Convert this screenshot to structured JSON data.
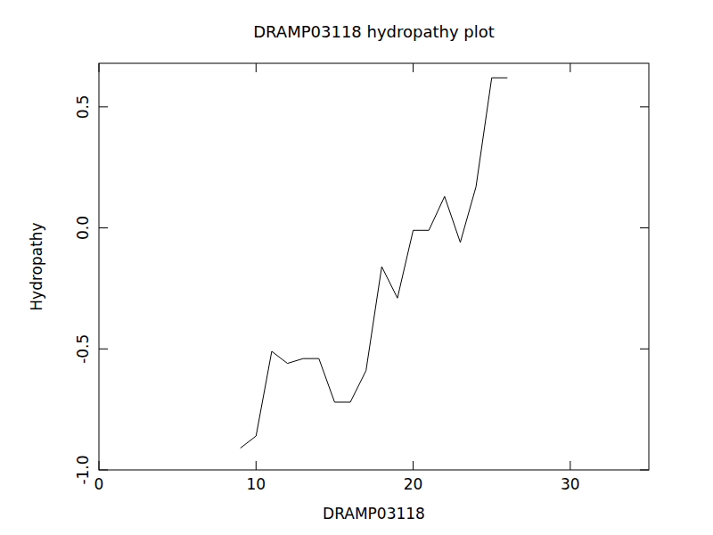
{
  "chart_data": {
    "type": "line",
    "title": "DRAMP03118 hydropathy plot",
    "x_label": "DRAMP03118",
    "y_label": "Hydropathy",
    "x": [
      9,
      10,
      11,
      12,
      13,
      14,
      15,
      16,
      17,
      18,
      19,
      20,
      21,
      22,
      23,
      24,
      25,
      26
    ],
    "values": [
      -0.91,
      -0.86,
      -0.51,
      -0.56,
      -0.54,
      -0.54,
      -0.72,
      -0.72,
      -0.59,
      -0.16,
      -0.29,
      -0.01,
      -0.01,
      0.13,
      -0.06,
      0.17,
      0.62,
      0.62
    ],
    "color": "#000000",
    "xlim": [
      0,
      35
    ],
    "xticks": [
      0,
      10,
      20,
      30
    ],
    "ylim": [
      -1.0,
      0.68
    ],
    "yticks": [
      {
        "value": -1.0,
        "label": "-1.0"
      },
      -0.5,
      {
        "value": 0,
        "label": "0.0"
      },
      0.5
    ],
    "grid": false
  }
}
